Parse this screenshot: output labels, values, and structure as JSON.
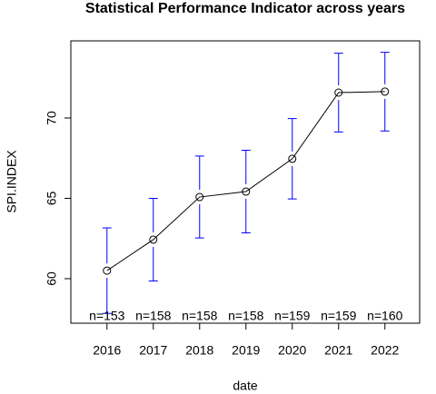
{
  "chart_data": {
    "type": "errorbar-line",
    "title": "Statistical Performance Indicator across years",
    "x_label": "date",
    "y_label": "SPI.INDEX",
    "x": [
      2016,
      2017,
      2018,
      2019,
      2020,
      2021,
      2022
    ],
    "values": [
      60.5,
      62.43,
      65.08,
      65.42,
      67.46,
      71.58,
      71.64
    ],
    "errors": [
      2.66,
      2.57,
      2.55,
      2.57,
      2.5,
      2.45,
      2.45
    ],
    "n_labels": [
      "n=153",
      "n=158",
      "n=158",
      "n=158",
      "n=159",
      "n=159",
      "n=160"
    ],
    "line_color": "#000000",
    "error_color": "#0000ff",
    "xlim": [
      2015.22,
      2022.75
    ],
    "xticks": [
      2016,
      2017,
      2018,
      2019,
      2020,
      2021,
      2022
    ],
    "ylim": [
      57.23,
      74.8
    ],
    "yticks": [
      60,
      65,
      70
    ]
  }
}
